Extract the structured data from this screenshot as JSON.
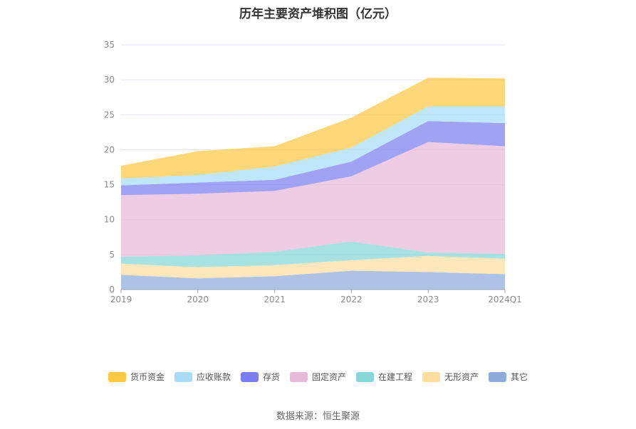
{
  "chart_data": {
    "type": "area",
    "stacked": true,
    "title": "历年主要资产堆积图（亿元）",
    "categories": [
      "2019",
      "2020",
      "2021",
      "2022",
      "2023",
      "2024Q1"
    ],
    "ylim": [
      0,
      35
    ],
    "yticks": [
      0,
      5,
      10,
      15,
      20,
      25,
      30,
      35
    ],
    "grid": true,
    "legend_position": "bottom",
    "series": [
      {
        "name": "其它",
        "color": "#8eaadb",
        "values": [
          2.1,
          1.6,
          1.9,
          2.7,
          2.5,
          2.2
        ]
      },
      {
        "name": "无形资产",
        "color": "#fddea0",
        "values": [
          1.6,
          1.6,
          1.6,
          1.5,
          2.3,
          2.2
        ]
      },
      {
        "name": "在建工程",
        "color": "#86d6d6",
        "values": [
          1.0,
          1.7,
          1.9,
          2.7,
          0.5,
          0.7
        ]
      },
      {
        "name": "固定资产",
        "color": "#e8b9d8",
        "values": [
          8.8,
          8.8,
          8.7,
          9.3,
          15.8,
          15.4
        ]
      },
      {
        "name": "存货",
        "color": "#7b7ef0",
        "values": [
          1.4,
          1.6,
          1.6,
          2.1,
          3.0,
          3.3
        ]
      },
      {
        "name": "应收账款",
        "color": "#a8dcf6",
        "values": [
          1.0,
          1.1,
          1.9,
          2.0,
          2.1,
          2.4
        ]
      },
      {
        "name": "货币资金",
        "color": "#fcc744",
        "values": [
          1.8,
          3.4,
          2.9,
          4.3,
          4.1,
          4.0
        ]
      }
    ],
    "legend_order": [
      "货币资金",
      "应收账款",
      "存货",
      "固定资产",
      "在建工程",
      "无形资产",
      "其它"
    ]
  },
  "footer": {
    "source": "数据来源：恒生聚源"
  }
}
